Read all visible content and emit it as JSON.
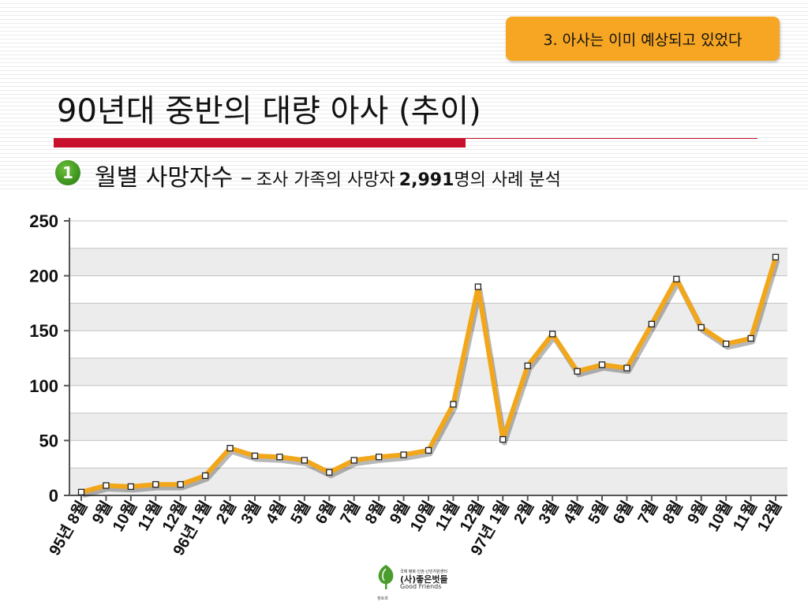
{
  "header": {
    "badge": "3. 아사는 이미 예상되고 있었다",
    "title": "90년대 중반의 대량 아사 (추이)",
    "section_number": "1",
    "subtitle_main": "월별 사망자수 –",
    "subtitle_desc": "조사 가족의 사망자",
    "subtitle_count": "2,991",
    "subtitle_tail": "명의 사례 분석"
  },
  "logo": {
    "org_small": "국제 평화·인권·난민지원센터",
    "org_name": "(사)좋은벗들",
    "org_en": "Good Friends",
    "tag": "정토회"
  },
  "colors": {
    "line": "#f2a71b",
    "title_rule": "#c8102e",
    "badge": "#f6a623"
  },
  "chart_data": {
    "type": "line",
    "title": "",
    "xlabel": "",
    "ylabel": "",
    "ylim": [
      0,
      250
    ],
    "yticks": [
      0,
      50,
      100,
      150,
      200,
      250
    ],
    "grid": true,
    "categories": [
      "95년 8월",
      "9월",
      "10월",
      "11월",
      "12월",
      "96년 1월",
      "2월",
      "3월",
      "4월",
      "5월",
      "6월",
      "7월",
      "8월",
      "9월",
      "10월",
      "11월",
      "12월",
      "97년 1월",
      "2월",
      "3월",
      "4월",
      "5월",
      "6월",
      "7월",
      "8월",
      "9월",
      "10월",
      "11월",
      "12월"
    ],
    "series": [
      {
        "values": [
          3,
          9,
          8,
          10,
          10,
          18,
          43,
          36,
          35,
          32,
          21,
          32,
          35,
          37,
          41,
          83,
          190,
          51,
          118,
          147,
          113,
          119,
          116,
          156,
          197,
          153,
          138,
          143,
          217
        ]
      }
    ]
  }
}
